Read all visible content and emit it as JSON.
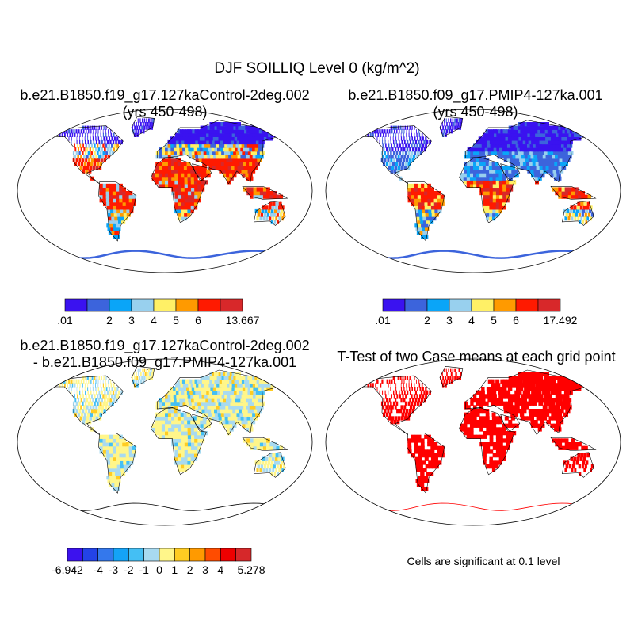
{
  "main_title": "DJF SOILLIQ Level 0 (kg/m^2)",
  "panels": [
    {
      "id": "control",
      "title_line1": "b.e21.B1850.f19_g17.127kaControl-2deg.002",
      "title_line2": "(yrs 450-498)",
      "colorbar": {
        "colors": [
          "#3a12f0",
          "#3c64dc",
          "#0aa5f8",
          "#98d0ee",
          "#fff066",
          "#ff9a00",
          "#ff1a00",
          "#d8282a"
        ],
        "labels": [
          ".01",
          "",
          "2",
          "3",
          "4",
          "5",
          "6",
          "",
          "13.667"
        ]
      }
    },
    {
      "id": "pmip4",
      "title_line1": "b.e21.B1850.f09_g17.PMIP4-127ka.001",
      "title_line2": "(yrs 450-498)",
      "colorbar": {
        "colors": [
          "#3a12f0",
          "#3c64dc",
          "#0aa5f8",
          "#98d0ee",
          "#fff066",
          "#ff9a00",
          "#ff1a00",
          "#d8282a"
        ],
        "labels": [
          ".01",
          "",
          "2",
          "3",
          "4",
          "5",
          "6",
          "",
          "17.492"
        ]
      }
    },
    {
      "id": "difference",
      "title_line1": "b.e21.B1850.f19_g17.127kaControl-2deg.002",
      "title_line2": "- b.e21.B1850.f09_g17.PMIP4-127ka.001",
      "colorbar": {
        "colors": [
          "#3c12ee",
          "#2343e8",
          "#3478ec",
          "#14a3f7",
          "#44bff4",
          "#a8daf0",
          "#fff68a",
          "#ffcc22",
          "#ff9a00",
          "#ff4c00",
          "#ee0000",
          "#d6282a"
        ],
        "labels": [
          "-6.942",
          "",
          "-4",
          "-3",
          "-2",
          "-1",
          "0",
          "1",
          "2",
          "3",
          "4",
          "",
          "5.278"
        ]
      }
    },
    {
      "id": "ttest",
      "title_line1": "T-Test of two Case means at each grid point",
      "title_line2": "",
      "significance_color": "#ff0000",
      "note": "Cells are significant at 0.1 level"
    }
  ]
}
